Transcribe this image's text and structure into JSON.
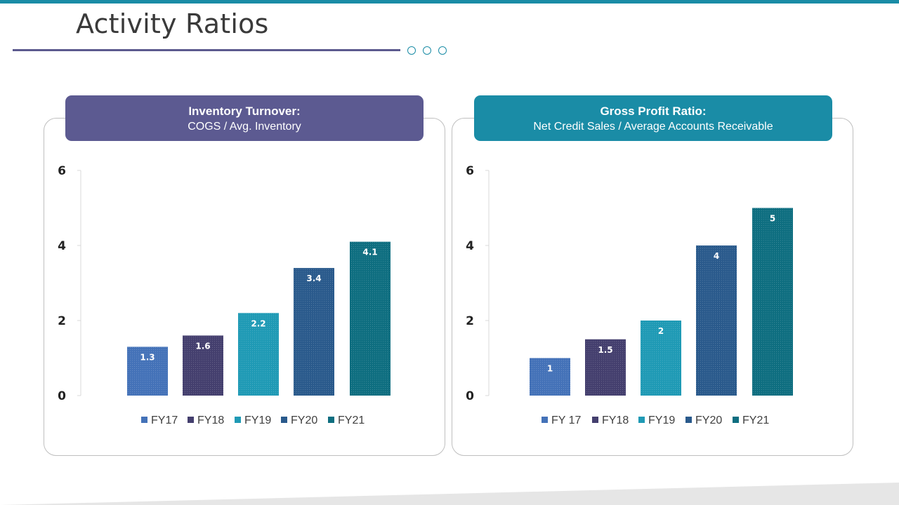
{
  "page": {
    "title": "Activity Ratios"
  },
  "colors": {
    "accent": "#1a8ca6",
    "rule": "#5c5a8e",
    "header_left": "#5c5a91",
    "header_right": "#1a8ca6"
  },
  "chart_data": [
    {
      "type": "bar",
      "header_title": "Inventory Turnover:",
      "header_subtitle": "COGS / Avg. Inventory",
      "categories": [
        "FY17",
        "FY18",
        "FY19",
        "FY20",
        "FY21"
      ],
      "values": [
        1.3,
        1.6,
        2.2,
        3.4,
        4.1
      ],
      "value_labels": [
        "1.3",
        "1.6",
        "2.2",
        "3.4",
        "4.1"
      ],
      "colors": [
        "#4472b8",
        "#443f6e",
        "#1f9ab5",
        "#2a5a8c",
        "#0e6e80"
      ],
      "ylim": [
        0,
        6
      ],
      "yticks": [
        0,
        2,
        4,
        6
      ],
      "legend": [
        "FY17",
        "FY18",
        "FY19",
        "FY20",
        "FY21"
      ]
    },
    {
      "type": "bar",
      "header_title": "Gross Profit Ratio:",
      "header_subtitle": "Net Credit Sales / Average Accounts Receivable",
      "categories": [
        "FY 17",
        "FY18",
        "FY19",
        "FY20",
        "FY21"
      ],
      "values": [
        1,
        1.5,
        2,
        4,
        5
      ],
      "value_labels": [
        "1",
        "1.5",
        "2",
        "4",
        "5"
      ],
      "colors": [
        "#4472b8",
        "#443f6e",
        "#1f9ab5",
        "#2a5a8c",
        "#0e6e80"
      ],
      "ylim": [
        0,
        6
      ],
      "yticks": [
        0,
        2,
        4,
        6
      ],
      "legend": [
        "FY 17",
        "FY18",
        "FY19",
        "FY20",
        "FY21"
      ]
    }
  ]
}
